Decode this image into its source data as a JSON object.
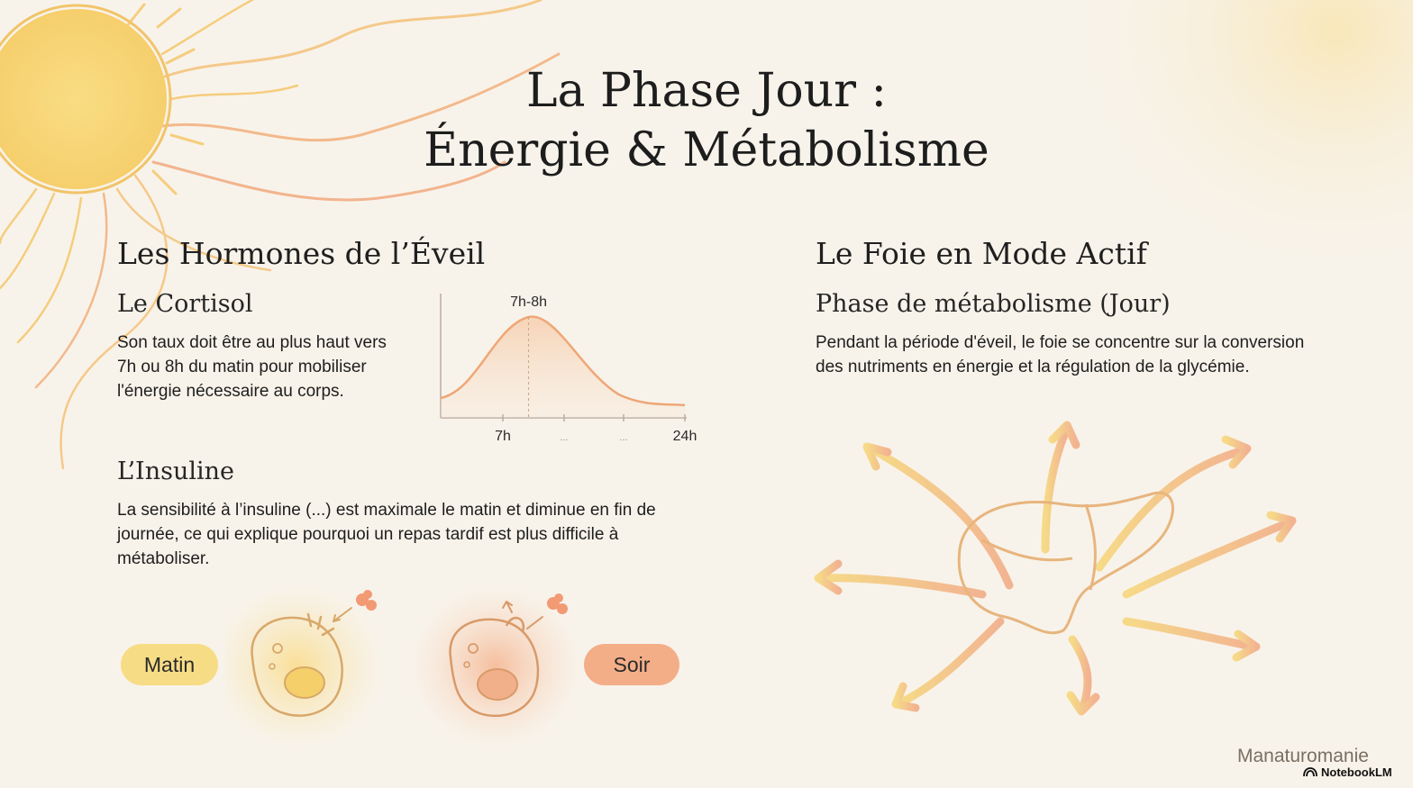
{
  "title": {
    "line1": "La Phase Jour :",
    "line2": "Énergie & Métabolisme"
  },
  "left": {
    "heading": "Les Hormones de l’Éveil",
    "cortisol": {
      "title": "Le Cortisol",
      "text": "Son taux doit être au plus haut vers 7h ou 8h du matin pour mobiliser l'énergie nécessaire au corps."
    },
    "insulin": {
      "title": "L’Insuline",
      "text": "La sensibilité à l’insuline (...) est maximale le matin et diminue en fin de journée, ce qui explique pourquoi un repas tardif est plus difficile à métaboliser."
    },
    "labels": {
      "morning": "Matin",
      "evening": "Soir"
    }
  },
  "right": {
    "heading": "Le Foie en Mode Actif",
    "subtitle": "Phase de métabolisme (Jour)",
    "text": "Pendant la période d'éveil, le foie se concentre sur la conversion des nutriments en énergie et la régulation de la glycémie."
  },
  "chart_data": {
    "type": "area",
    "peak_label": "7h-8h",
    "x_tick_labels": [
      "7h",
      "...",
      "...",
      "24h"
    ],
    "peak_x_fraction": 0.36,
    "colors": {
      "curve": "#eea777",
      "fill": "#f6c9a5"
    }
  },
  "footer": {
    "brand": "Manaturomanie",
    "logo": "NotebookLM"
  },
  "icons": {
    "sun": "sun-illustration",
    "cells": [
      "cell-morning-icon",
      "cell-evening-icon"
    ],
    "liver": "liver-icon"
  }
}
